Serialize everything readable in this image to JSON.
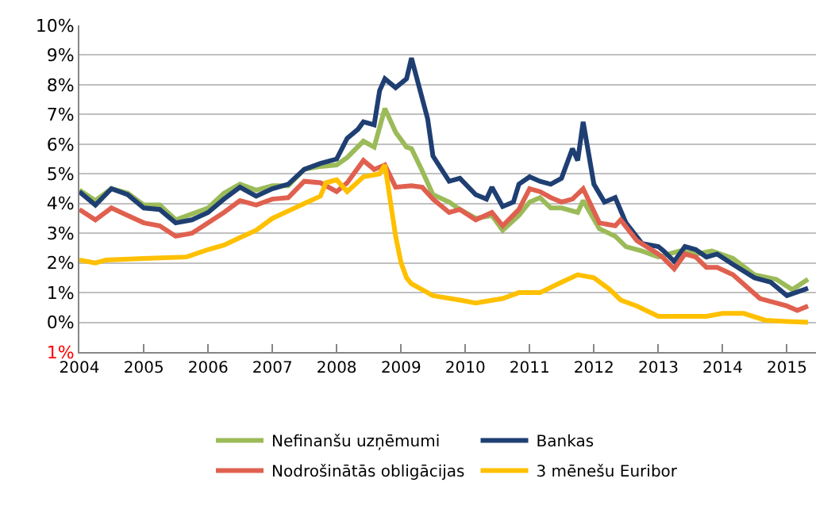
{
  "chart_data": {
    "type": "line",
    "xlim": [
      "2004-01-01",
      "2015-06-15"
    ],
    "xticks": [
      {
        "value": "2004-01-01",
        "label": "2004"
      },
      {
        "value": "2005-01-01",
        "label": "2005"
      },
      {
        "value": "2006-01-01",
        "label": "2006"
      },
      {
        "value": "2007-01-01",
        "label": "2007"
      },
      {
        "value": "2008-01-01",
        "label": "2008"
      },
      {
        "value": "2009-01-01",
        "label": "2009"
      },
      {
        "value": "2010-01-01",
        "label": "2010"
      },
      {
        "value": "2011-01-01",
        "label": "2011"
      },
      {
        "value": "2012-01-01",
        "label": "2012"
      },
      {
        "value": "2013-01-01",
        "label": "2013"
      },
      {
        "value": "2014-01-01",
        "label": "2014"
      },
      {
        "value": "2015-01-01",
        "label": "2015"
      }
    ],
    "ylim": [
      -1,
      10
    ],
    "yticks": [
      {
        "value": -1,
        "label": "1%"
      },
      {
        "value": 0,
        "label": "0%"
      },
      {
        "value": 1,
        "label": "1%"
      },
      {
        "value": 2,
        "label": "2%"
      },
      {
        "value": 3,
        "label": "3%"
      },
      {
        "value": 4,
        "label": "4%"
      },
      {
        "value": 5,
        "label": "5%"
      },
      {
        "value": 6,
        "label": "6%"
      },
      {
        "value": 7,
        "label": "7%"
      },
      {
        "value": 8,
        "label": "8%"
      },
      {
        "value": 9,
        "label": "9%"
      },
      {
        "value": 10,
        "label": "10%"
      }
    ],
    "grid": "y",
    "legend": "bottom",
    "marker": "none",
    "line_style": "solid",
    "series": [
      {
        "name": "Nefinanšu uzņēmumi",
        "color": "#9bbb59",
        "x": [
          "2004-01",
          "2004-04",
          "2004-07",
          "2004-10",
          "2005-01",
          "2005-04",
          "2005-07",
          "2005-10",
          "2006-01",
          "2006-04",
          "2006-07",
          "2006-10",
          "2007-01",
          "2007-04",
          "2007-07",
          "2007-10",
          "2008-01",
          "2008-03",
          "2008-06",
          "2008-08",
          "2008-10",
          "2008-12",
          "2009-02",
          "2009-03",
          "2009-05",
          "2009-07",
          "2009-10",
          "2009-12",
          "2010-03",
          "2010-06",
          "2010-08",
          "2010-11",
          "2011-01",
          "2011-03",
          "2011-05",
          "2011-07",
          "2011-10",
          "2011-11",
          "2012-02",
          "2012-05",
          "2012-07",
          "2012-10",
          "2013-01",
          "2013-05",
          "2013-08",
          "2013-11",
          "2014-03",
          "2014-07",
          "2014-11",
          "2015-02",
          "2015-05"
        ],
        "values": [
          4.45,
          4.1,
          4.5,
          4.35,
          3.95,
          3.95,
          3.45,
          3.65,
          3.85,
          4.35,
          4.65,
          4.45,
          4.6,
          4.6,
          5.15,
          5.25,
          5.3,
          5.55,
          6.1,
          5.9,
          7.2,
          6.4,
          5.9,
          5.85,
          5.1,
          4.3,
          4.05,
          3.8,
          3.5,
          3.6,
          3.1,
          3.6,
          4.05,
          4.2,
          3.85,
          3.85,
          3.7,
          4.1,
          3.15,
          2.9,
          2.55,
          2.4,
          2.2,
          2.4,
          2.3,
          2.4,
          2.15,
          1.6,
          1.45,
          1.1,
          1.45
        ]
      },
      {
        "name": "Bankas",
        "color": "#1f3f73",
        "x": [
          "2004-01",
          "2004-04",
          "2004-07",
          "2004-10",
          "2005-01",
          "2005-04",
          "2005-07",
          "2005-10",
          "2006-01",
          "2006-04",
          "2006-07",
          "2006-10",
          "2007-01",
          "2007-04",
          "2007-07",
          "2007-10",
          "2008-01",
          "2008-03",
          "2008-05",
          "2008-06",
          "2008-08",
          "2008-09",
          "2008-10",
          "2008-12",
          "2009-02",
          "2009-03",
          "2009-06",
          "2009-07",
          "2009-10",
          "2009-12",
          "2010-03",
          "2010-05",
          "2010-06",
          "2010-08",
          "2010-10",
          "2010-11",
          "2011-01",
          "2011-03",
          "2011-05",
          "2011-07",
          "2011-09",
          "2011-10",
          "2011-11",
          "2012-01",
          "2012-03",
          "2012-05",
          "2012-07",
          "2012-10",
          "2013-01",
          "2013-02",
          "2013-04",
          "2013-06",
          "2013-08",
          "2013-10",
          "2013-12",
          "2014-03",
          "2014-07",
          "2014-10",
          "2015-01",
          "2015-05"
        ],
        "values": [
          4.4,
          3.95,
          4.5,
          4.3,
          3.85,
          3.8,
          3.35,
          3.45,
          3.7,
          4.15,
          4.55,
          4.25,
          4.5,
          4.65,
          5.15,
          5.35,
          5.5,
          6.2,
          6.5,
          6.75,
          6.65,
          7.8,
          8.2,
          7.9,
          8.2,
          8.9,
          6.85,
          5.6,
          4.75,
          4.85,
          4.3,
          4.15,
          4.55,
          3.9,
          4.05,
          4.65,
          4.9,
          4.75,
          4.65,
          4.85,
          5.85,
          5.45,
          6.75,
          4.65,
          4.05,
          4.2,
          3.35,
          2.65,
          2.55,
          2.4,
          2.05,
          2.55,
          2.45,
          2.2,
          2.3,
          1.95,
          1.5,
          1.35,
          0.9,
          1.15
        ]
      },
      {
        "name": "Nodrošinātās obligācijas",
        "color": "#e0604f",
        "x": [
          "2004-01",
          "2004-04",
          "2004-07",
          "2004-10",
          "2005-01",
          "2005-04",
          "2005-07",
          "2005-10",
          "2006-01",
          "2006-04",
          "2006-07",
          "2006-10",
          "2007-01",
          "2007-04",
          "2007-07",
          "2007-10",
          "2008-01",
          "2008-03",
          "2008-06",
          "2008-08",
          "2008-10",
          "2008-12",
          "2009-03",
          "2009-05",
          "2009-07",
          "2009-10",
          "2009-12",
          "2010-03",
          "2010-06",
          "2010-08",
          "2010-11",
          "2011-01",
          "2011-03",
          "2011-05",
          "2011-07",
          "2011-09",
          "2011-11",
          "2012-02",
          "2012-05",
          "2012-06",
          "2012-09",
          "2013-01",
          "2013-02",
          "2013-04",
          "2013-06",
          "2013-08",
          "2013-10",
          "2013-12",
          "2014-03",
          "2014-08",
          "2014-11",
          "2015-01",
          "2015-03",
          "2015-05"
        ],
        "values": [
          3.8,
          3.45,
          3.85,
          3.6,
          3.35,
          3.25,
          2.9,
          3.0,
          3.35,
          3.7,
          4.1,
          3.95,
          4.15,
          4.2,
          4.75,
          4.7,
          4.4,
          4.7,
          5.45,
          5.15,
          5.3,
          4.55,
          4.6,
          4.55,
          4.15,
          3.7,
          3.8,
          3.45,
          3.7,
          3.25,
          3.8,
          4.5,
          4.4,
          4.2,
          4.05,
          4.15,
          4.5,
          3.35,
          3.25,
          3.45,
          2.75,
          2.3,
          2.15,
          1.8,
          2.3,
          2.2,
          1.85,
          1.85,
          1.6,
          0.8,
          0.65,
          0.55,
          0.4,
          0.55
        ]
      },
      {
        "name": "3 mēnešu Euribor",
        "color": "#ffc000",
        "x": [
          "2004-01",
          "2004-04",
          "2004-06",
          "2005-01",
          "2005-09",
          "2006-01",
          "2006-04",
          "2006-07",
          "2006-10",
          "2007-01",
          "2007-04",
          "2007-07",
          "2007-10",
          "2007-11",
          "2008-01",
          "2008-03",
          "2008-06",
          "2008-09",
          "2008-10",
          "2008-12",
          "2009-01",
          "2009-02",
          "2009-03",
          "2009-07",
          "2009-12",
          "2010-03",
          "2010-08",
          "2010-11",
          "2011-03",
          "2011-07",
          "2011-10",
          "2012-01",
          "2012-04",
          "2012-06",
          "2012-09",
          "2013-01",
          "2013-04",
          "2013-10",
          "2014-01",
          "2014-05",
          "2014-09",
          "2015-01",
          "2015-05"
        ],
        "values": [
          2.1,
          2.0,
          2.1,
          2.15,
          2.2,
          2.45,
          2.6,
          2.85,
          3.1,
          3.5,
          3.75,
          4.0,
          4.25,
          4.7,
          4.8,
          4.4,
          4.9,
          5.0,
          5.3,
          2.9,
          2.0,
          1.5,
          1.3,
          0.9,
          0.75,
          0.65,
          0.8,
          1.0,
          1.0,
          1.35,
          1.6,
          1.5,
          1.1,
          0.75,
          0.55,
          0.2,
          0.2,
          0.2,
          0.3,
          0.3,
          0.07,
          0.03,
          0.0
        ]
      }
    ]
  }
}
